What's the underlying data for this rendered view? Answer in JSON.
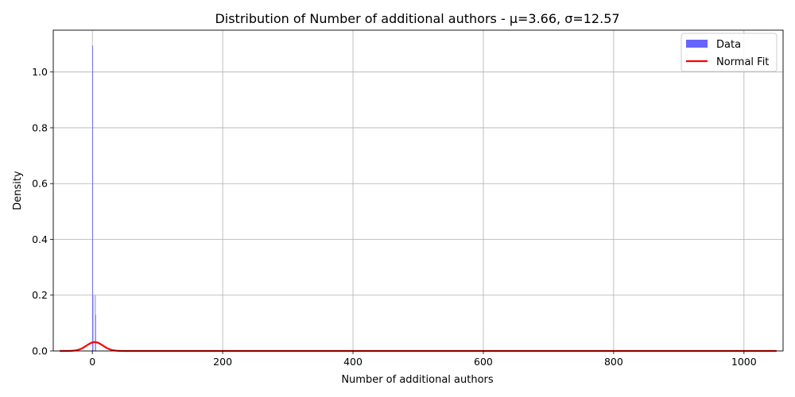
{
  "chart_data": {
    "type": "histogram",
    "title": "Distribution of Number of additional authors - μ=3.66, σ=12.57",
    "xlabel": "Number of additional authors",
    "ylabel": "Density",
    "xlim": [
      -60,
      1060
    ],
    "ylim": [
      0,
      1.15
    ],
    "xticks": [
      0,
      200,
      400,
      600,
      800,
      1000
    ],
    "yticks": [
      0.0,
      0.2,
      0.4,
      0.6,
      0.8,
      1.0
    ],
    "grid": true,
    "legend": {
      "placement": "top-right",
      "entries": [
        "Data",
        "Normal Fit"
      ]
    },
    "series": [
      {
        "name": "Data",
        "type": "bar",
        "color": "#6666ff",
        "bins": [
          {
            "x0": 0,
            "x1": 0.5,
            "density": 1.095
          },
          {
            "x0": 0.5,
            "x1": 1,
            "density": 0.2
          },
          {
            "x0": 4,
            "x1": 4.5,
            "density": 0.2
          },
          {
            "x0": 4.5,
            "x1": 5,
            "density": 0.13
          }
        ]
      },
      {
        "name": "Normal Fit",
        "type": "line",
        "color": "#ff0000",
        "mu": 3.66,
        "sigma": 12.57,
        "x_range": [
          -50,
          1050
        ]
      }
    ]
  }
}
